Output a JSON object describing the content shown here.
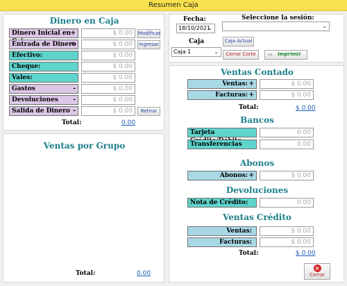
{
  "window": {
    "title": "Resumen Caja"
  },
  "dinero": {
    "title": "Dinero en Caja",
    "rows": [
      {
        "label": "Dinero Inicial en Caja",
        "sign": "+",
        "value": "$ 0.00",
        "button": "Modificar"
      },
      {
        "label": "Entrada de Dinero",
        "sign": "+",
        "value": "$ 0.00",
        "button": "Ingresar"
      },
      {
        "label": "Efectivo:",
        "value": "$ 0.00"
      },
      {
        "label": "Cheque:",
        "value": "$ 0.00"
      },
      {
        "label": "Vales:",
        "value": "$ 0.00"
      },
      {
        "label": "Gastos",
        "sign": "-",
        "value": "$ 0.00"
      },
      {
        "label": "Devoluciones",
        "sign": "-",
        "value": "$ 0.00"
      },
      {
        "label": "Salida de Dinero",
        "sign": "-",
        "value": "$ 0.00",
        "button": "Retirar"
      }
    ],
    "total_label": "Total:",
    "total_value": "0.00"
  },
  "grupo": {
    "title": "Ventas por Grupo",
    "total_label": "Total:",
    "total_value": "0.00"
  },
  "header": {
    "fecha_label": "Fecha:",
    "fecha_value": "18/10/2021",
    "sesion_label": "Seleccione la sesión:",
    "sesion_value": "",
    "caja_label": "Caja",
    "caja_value": "Caja 1",
    "caja_actual": "Caja Actual",
    "cerrar_corte": "Cerrar Corte",
    "imprimir": "Imprimir"
  },
  "contado": {
    "title": "Ventas Contado",
    "ventas_label": "Ventas:",
    "ventas_sign": "+",
    "ventas_value": "$ 0.00",
    "facturas_label": "Facturas:",
    "facturas_sign": "+",
    "facturas_value": "$ 0.00",
    "total_label": "Total:",
    "total_value": "$ 0.00"
  },
  "bancos": {
    "title": "Bancos",
    "tarjeta_label": "Tarjeta Crédito/Débito",
    "tarjeta_value": "0.00",
    "transf_label": "Transferencias",
    "transf_value": "0.00"
  },
  "abonos": {
    "title": "Abonos",
    "label": "Abonos:",
    "sign": "+",
    "value": "$ 0.00"
  },
  "devoluciones": {
    "title": "Devoluciones",
    "label": "Nota de Crédito:",
    "value": "0.00"
  },
  "credito": {
    "title": "Ventas Crédito",
    "ventas_label": "Ventas:",
    "ventas_value": "$ 0.00",
    "facturas_label": "Facturas:",
    "facturas_value": "$ 0.00",
    "total_label": "Total:",
    "total_value": "$ 0.00"
  },
  "cerrar": "Cerrar",
  "colors": {
    "accent": "#1b7f8a",
    "pink": "#dcc7e6",
    "teal": "#5ed4cc",
    "blue": "#a9d8e5"
  }
}
